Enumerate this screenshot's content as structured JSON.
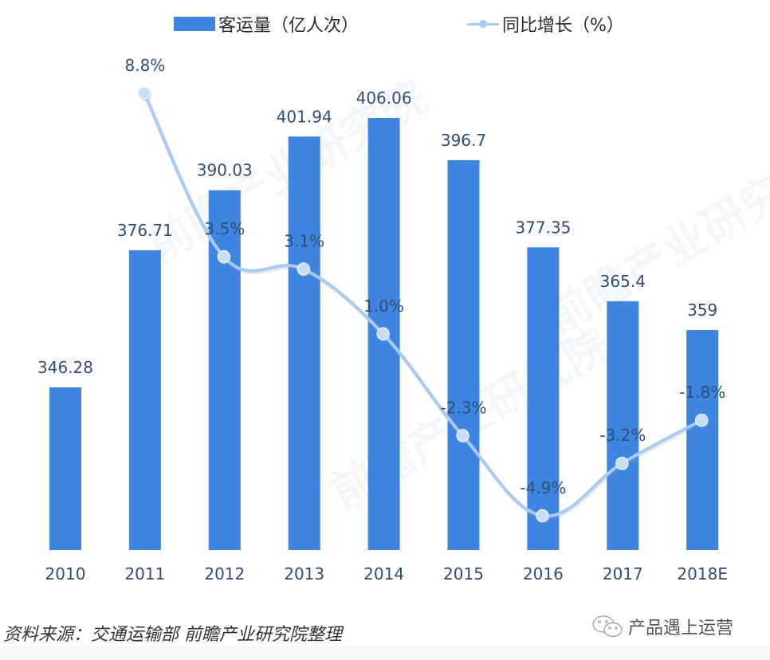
{
  "legend": {
    "bar_label": "客运量（亿人次）",
    "line_label": "同比增长（%）"
  },
  "footer": {
    "source": "资料来源：交通运输部  前瞻产业研究院整理",
    "brand": "产品遇上运营"
  },
  "watermark": "前瞻产业研究院",
  "colors": {
    "bar": "#3d85e0",
    "line": "#a9cbf3",
    "marker": "#c6dcf7",
    "label": "#2f4d72",
    "axis_label": "#2f4d72"
  },
  "chart_data": {
    "type": "bar",
    "title": "",
    "xlabel": "",
    "ylabel": "",
    "categories": [
      "2010",
      "2011",
      "2012",
      "2013",
      "2014",
      "2015",
      "2016",
      "2017",
      "2018E"
    ],
    "series": [
      {
        "name": "客运量（亿人次）",
        "type": "bar",
        "values": [
          346.28,
          376.71,
          390.03,
          401.94,
          406.06,
          396.7,
          377.35,
          365.4,
          359
        ],
        "labels": [
          "346.28",
          "376.71",
          "390.03",
          "401.94",
          "406.06",
          "396.7",
          "377.35",
          "365.4",
          "359"
        ]
      },
      {
        "name": "同比增长（%）",
        "type": "line",
        "values": [
          null,
          8.8,
          3.5,
          3.1,
          1.0,
          -2.3,
          -4.9,
          -3.2,
          -1.8
        ],
        "labels": [
          "",
          "8.8%",
          "3.5%",
          "3.1%",
          "1.0%",
          "-2.3%",
          "-4.9%",
          "-3.2%",
          "-1.8%"
        ]
      }
    ],
    "grid": false,
    "legend_position": "top",
    "axis_visible": false
  }
}
